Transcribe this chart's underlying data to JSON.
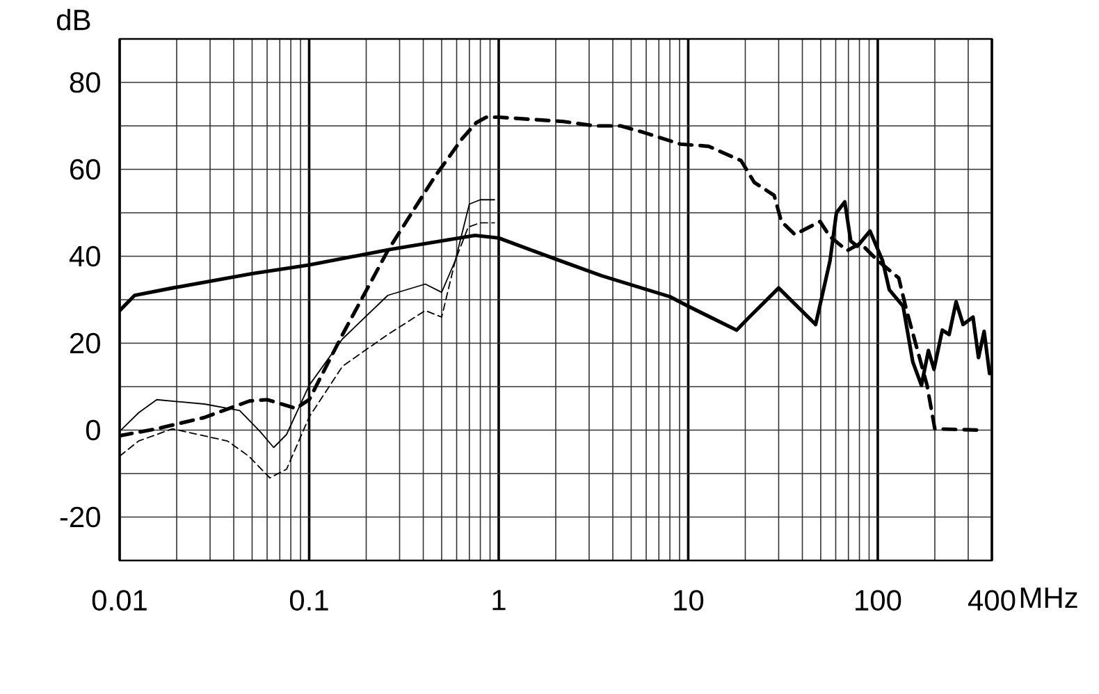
{
  "chart_data": {
    "type": "line",
    "xlabel": "MHz",
    "ylabel": "dB",
    "log": "x",
    "grid": true,
    "marker": "none",
    "xlim": [
      0.01,
      400
    ],
    "ylim": [
      -30,
      90
    ],
    "xticks": [
      0.01,
      0.1,
      1,
      10,
      100,
      400
    ],
    "yticks": [
      -20,
      {
        "value": -10,
        "label": null
      },
      0,
      {
        "value": 10,
        "label": null
      },
      20,
      {
        "value": 30,
        "label": null
      },
      40,
      {
        "value": 50,
        "label": null
      },
      60,
      {
        "value": 70,
        "label": null
      },
      80
    ],
    "series": [
      {
        "color": "#000000",
        "line_style": "solid",
        "x": [
          0.01,
          0.012,
          0.019,
          0.05,
          0.1,
          0.27,
          0.75,
          1.0,
          2.1,
          3.5,
          8,
          10,
          18,
          21,
          30,
          47,
          56,
          60.5,
          67,
          72,
          78,
          91,
          106,
          115,
          136,
          153,
          170,
          185,
          198,
          219,
          238,
          259,
          282,
          318,
          340,
          364,
          389
        ],
        "values": [
          27.5,
          31,
          32.7,
          36,
          38,
          41.6,
          44.8,
          44.2,
          39,
          35.5,
          30.7,
          28.5,
          23,
          26,
          32.7,
          24.3,
          39,
          50,
          52.5,
          43.5,
          42.3,
          45.8,
          39,
          32.3,
          28.5,
          15.7,
          10.3,
          18.3,
          14,
          23,
          22,
          29.5,
          24.3,
          26,
          16.7,
          22.7,
          13
        ]
      },
      {
        "color": "#000000",
        "line_style": "dashed",
        "x": [
          0.01,
          0.0157,
          0.028,
          0.0485,
          0.06,
          0.085,
          0.1,
          0.15,
          0.26,
          0.46,
          0.64,
          0.76,
          0.86,
          1.0,
          2.2,
          3.2,
          4.4,
          5.8,
          9.1,
          12.8,
          19,
          22.3,
          28.4,
          31,
          36.5,
          49.6,
          56,
          69,
          81,
          100,
          129,
          141,
          182,
          200,
          340
        ],
        "values": [
          -1.3,
          0.3,
          2.9,
          6.7,
          7,
          5,
          7,
          22,
          41.3,
          58.3,
          67,
          70.7,
          72,
          72,
          71,
          70,
          70,
          68.5,
          65.8,
          65.3,
          62,
          57,
          54,
          48,
          45,
          48,
          44.5,
          41.3,
          43,
          39,
          35,
          28,
          10.3,
          0.3,
          0
        ]
      },
      {
        "color": "#000000",
        "line_style": "solid",
        "x": [
          0.01,
          0.0126,
          0.0157,
          0.028,
          0.043,
          0.055,
          0.065,
          0.076,
          0.1,
          0.15,
          0.26,
          0.41,
          0.5,
          0.59,
          0.7,
          0.8,
          0.95
        ],
        "values": [
          -0.3,
          4,
          7,
          6,
          4.5,
          -0.3,
          -4,
          -1,
          10.3,
          21,
          31,
          33.6,
          31.7,
          39,
          52,
          53,
          53
        ]
      },
      {
        "color": "#000000",
        "line_style": "dashed",
        "x": [
          0.01,
          0.0126,
          0.019,
          0.037,
          0.048,
          0.062,
          0.076,
          0.1,
          0.15,
          0.26,
          0.41,
          0.5,
          0.59,
          0.69,
          0.8,
          0.95
        ],
        "values": [
          -6,
          -2.5,
          0.3,
          -2.5,
          -6,
          -11,
          -9,
          3,
          14.7,
          22,
          27.5,
          26,
          39,
          46.7,
          47.7,
          47.7
        ]
      }
    ]
  }
}
